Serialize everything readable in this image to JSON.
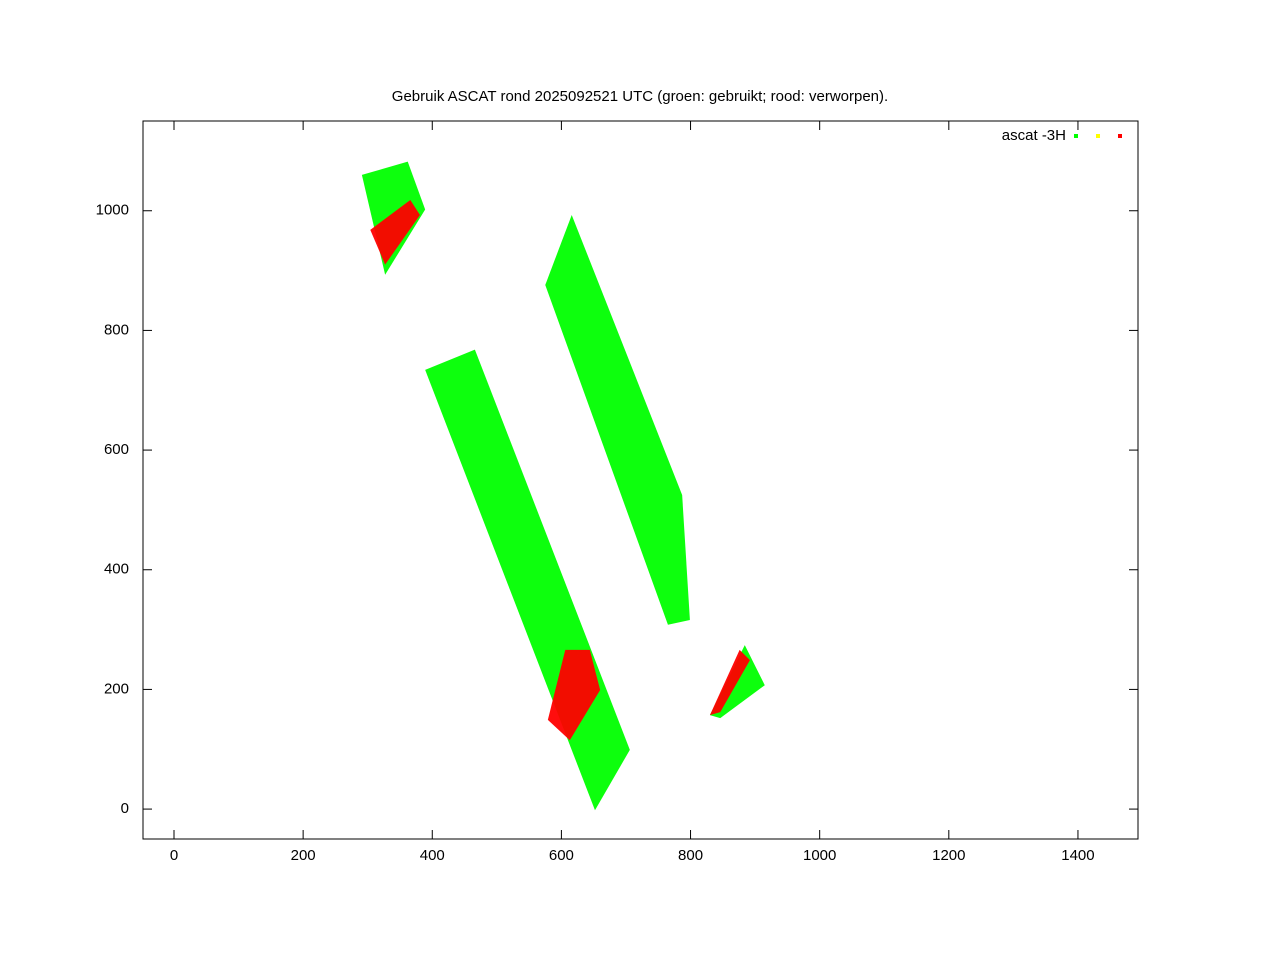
{
  "chart_data": {
    "type": "scatter",
    "title": "Gebruik ASCAT rond 2025092521 UTC (groen: gebruikt; rood: verworpen).",
    "xlim": [
      -48,
      1493
    ],
    "ylim": [
      -50,
      1150
    ],
    "xticks": [
      0,
      200,
      400,
      600,
      800,
      1000,
      1200,
      1400
    ],
    "yticks": [
      0,
      200,
      400,
      600,
      800,
      1000
    ],
    "legend": "upper right",
    "series": [
      {
        "name": "ascat -3H",
        "color": "#00ff00",
        "x": [
          291,
          362,
          389,
          327,
          null,
          389,
          466,
          706,
          652,
          null,
          575,
          616,
          787,
          799,
          765,
          null,
          830,
          884,
          915,
          846
        ],
        "y": [
          1060,
          1082,
          1002,
          893,
          null,
          734,
          768,
          99,
          -2,
          null,
          876,
          993,
          525,
          316,
          308,
          null,
          157,
          274,
          207,
          152
        ]
      },
      {
        "color": "#ffff00",
        "x": [],
        "y": []
      },
      {
        "color": "#ff0000",
        "x": [
          304,
          366,
          381,
          327,
          null,
          579,
          606,
          644,
          660,
          613,
          null,
          830,
          876,
          892,
          846
        ],
        "y": [
          968,
          1018,
          993,
          910,
          null,
          149,
          266,
          266,
          199,
          115,
          null,
          157,
          266,
          249,
          162
        ]
      }
    ]
  }
}
